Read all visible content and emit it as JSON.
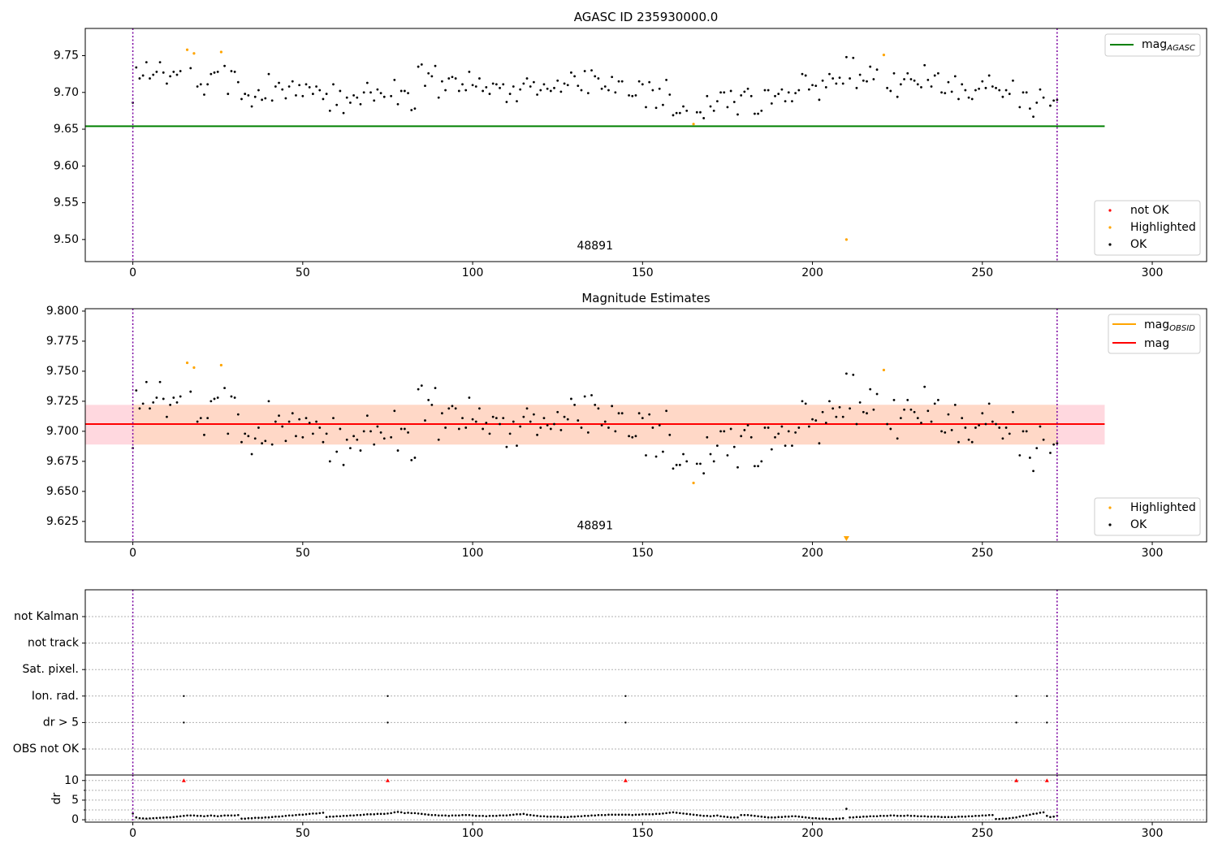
{
  "chart_data": [
    {
      "type": "scatter",
      "title": "AGASC ID 235930000.0",
      "xlim": [
        -14,
        316
      ],
      "ylim": [
        9.47,
        9.787
      ],
      "x_ticks": [
        "0",
        "50",
        "100",
        "150",
        "200",
        "250",
        "300"
      ],
      "y_ticks": [
        "9.50",
        "9.55",
        "9.60",
        "9.65",
        "9.70",
        "9.75"
      ],
      "reference_lines": [
        {
          "name": "mag_AGASC",
          "y": 9.654,
          "x_range": [
            -14,
            286
          ],
          "color": "#008000"
        }
      ],
      "vlines": [
        0,
        272
      ],
      "obsid_label": {
        "text": "48891",
        "x": 136,
        "y": 9.478
      },
      "series": [
        {
          "name": "not OK",
          "color": "#ff0000",
          "x": [],
          "y": []
        },
        {
          "name": "Highlighted",
          "color": "#ffa500",
          "x": [
            16,
            18,
            26,
            165,
            210,
            221
          ],
          "y": [
            9.758,
            9.753,
            9.755,
            9.657,
            9.5,
            9.751
          ]
        },
        {
          "name": "OK",
          "color": "#000000",
          "x": [],
          "y": []
        }
      ],
      "legend": {
        "lines": [
          {
            "label": "mag",
            "sub": "AGASC",
            "color": "#008000"
          }
        ],
        "markers": [
          {
            "label": "not OK",
            "color": "#ff0000"
          },
          {
            "label": "Highlighted",
            "color": "#ffa500"
          },
          {
            "label": "OK",
            "color": "#000000"
          }
        ]
      }
    },
    {
      "type": "scatter",
      "title": "Magnitude Estimates",
      "xlim": [
        -14,
        316
      ],
      "ylim": [
        9.608,
        9.802
      ],
      "x_ticks": [
        "0",
        "50",
        "100",
        "150",
        "200",
        "250",
        "300"
      ],
      "y_ticks": [
        "9.625",
        "9.650",
        "9.675",
        "9.700",
        "9.725",
        "9.750",
        "9.775",
        "9.800"
      ],
      "reference_lines": [
        {
          "name": "mag",
          "y": 9.706,
          "x_range": [
            -14,
            286
          ],
          "color": "#ff0000"
        }
      ],
      "bands": [
        {
          "y": [
            9.689,
            9.722
          ],
          "x_range": [
            -14,
            286
          ],
          "color": "#ffd4dc"
        },
        {
          "y": [
            9.689,
            9.722
          ],
          "x_range": [
            0,
            272
          ],
          "color": "#ffd8c4"
        }
      ],
      "vlines": [
        0,
        272
      ],
      "obsid_label": {
        "text": "48891",
        "x": 136,
        "y": 9.613
      },
      "series": [
        {
          "name": "Highlighted",
          "color": "#ffa500",
          "x": [
            16,
            18,
            26,
            165,
            221
          ],
          "y": [
            9.757,
            9.753,
            9.755,
            9.657,
            9.751
          ]
        },
        {
          "name": "OK",
          "color": "#000000",
          "x": [],
          "y": []
        }
      ],
      "offscale_marker": {
        "x": 210,
        "color": "#ffa500"
      },
      "legend": {
        "lines": [
          {
            "label": "mag",
            "sub": "OBSID",
            "color": "#ffa500"
          },
          {
            "label": "mag",
            "sub": "",
            "color": "#ff0000"
          }
        ],
        "markers": [
          {
            "label": "Highlighted",
            "color": "#ffa500"
          },
          {
            "label": "OK",
            "color": "#000000"
          }
        ]
      }
    },
    {
      "type": "scatter",
      "title": "",
      "xlim": [
        -14,
        316
      ],
      "categories": [
        "not Kalman",
        "not track",
        "Sat. pixel.",
        "Ion. rad.",
        "dr > 5",
        "OBS not OK"
      ],
      "flags": {
        "Ion. rad.": [
          15,
          75,
          145,
          260,
          269
        ],
        "dr > 5": [
          15,
          75,
          145,
          260,
          269
        ]
      },
      "vlines": [
        0,
        272
      ]
    },
    {
      "type": "scatter",
      "title": "",
      "ylabel": "dr",
      "xlim": [
        -14,
        316
      ],
      "ylim": [
        -0.6,
        11.4
      ],
      "x_ticks": [
        "0",
        "50",
        "100",
        "150",
        "200",
        "250",
        "300"
      ],
      "y_ticks": [
        "0",
        "5",
        "10"
      ],
      "clipped_markers": {
        "x": [
          15,
          75,
          145,
          260,
          269
        ],
        "color": "#ff0000"
      },
      "series": [
        {
          "name": "dr",
          "color": "#000000",
          "x": [],
          "y": []
        }
      ],
      "vlines": [
        0,
        272
      ]
    }
  ]
}
